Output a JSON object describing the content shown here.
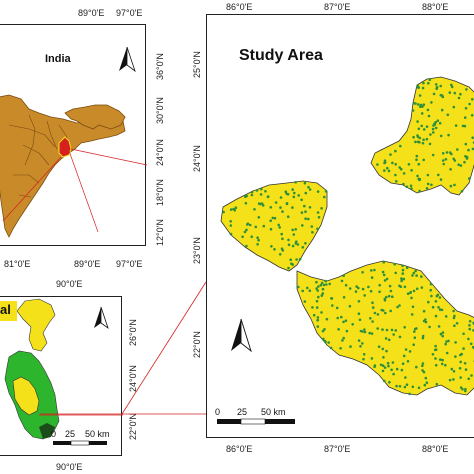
{
  "colors": {
    "india_fill": "#c98a2a",
    "india_border": "#7a4d10",
    "highlight_red": "#d62020",
    "study_fill": "#f4e11a",
    "study_border": "#333333",
    "points": "#2f8f3a",
    "wb_green": "#2db52d",
    "wb_yellow": "#f4e11a",
    "frame": "#222222"
  },
  "india_map": {
    "label": "India",
    "top_labels": [
      "89°0'E",
      "97°0'E"
    ],
    "bottom_labels": [
      "81°0'E",
      "89°0'E",
      "97°0'E"
    ],
    "right_labels": [
      "36°0'N",
      "30°0'N",
      "24°0'N",
      "18°0'N",
      "12°0'N"
    ],
    "north_icon": "north-arrow-icon"
  },
  "wb_map": {
    "label": "al",
    "top_label": "90°0'E",
    "bottom_label": "90°0'E",
    "right_labels": [
      "26°0'N",
      "24°0'N",
      "22°0'N"
    ],
    "scale": [
      "0",
      "25",
      "50 km"
    ],
    "north_icon": "north-arrow-icon"
  },
  "study_map": {
    "title": "Study  Area",
    "top_labels": [
      "86°0'E",
      "87°0'E",
      "88°0'E"
    ],
    "bottom_labels": [
      "86°0'E",
      "87°0'E",
      "88°0'E"
    ],
    "left_labels": [
      "25°0'N",
      "24°0'N",
      "23°0'N",
      "22°0'N"
    ],
    "scale": [
      "0",
      "25",
      "50 km"
    ],
    "north_icon": "north-arrow-icon"
  }
}
